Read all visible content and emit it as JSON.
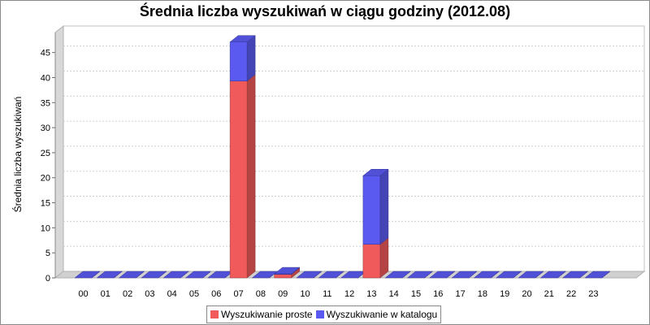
{
  "chart_data": {
    "type": "bar",
    "stacked": true,
    "style": "3d",
    "title": "Średnia liczba wyszukiwań w ciągu godziny (2012.08)",
    "xlabel": "",
    "ylabel": "Średnia liczba wyszukiwań",
    "ylim": [
      0,
      49
    ],
    "yticks": [
      0,
      5,
      10,
      15,
      20,
      25,
      30,
      35,
      40,
      45
    ],
    "grid": true,
    "legend_position": "bottom",
    "categories": [
      "00",
      "01",
      "02",
      "03",
      "04",
      "05",
      "06",
      "07",
      "08",
      "09",
      "10",
      "11",
      "12",
      "13",
      "14",
      "15",
      "16",
      "17",
      "18",
      "19",
      "20",
      "21",
      "22",
      "23"
    ],
    "series": [
      {
        "name": "Wyszukiwanie proste",
        "color": "#f05a5a",
        "values": [
          0,
          0,
          0,
          0,
          0,
          0,
          0,
          39.3,
          0,
          0.7,
          0,
          0,
          0,
          6.7,
          0,
          0,
          0,
          0,
          0,
          0,
          0,
          0,
          0,
          0
        ]
      },
      {
        "name": "Wyszukiwanie w katalogu",
        "color": "#5a5af0",
        "values": [
          0,
          0,
          0,
          0,
          0,
          0,
          0,
          7.8,
          0,
          0.1,
          0,
          0,
          0,
          13.7,
          0,
          0,
          0,
          0,
          0,
          0,
          0,
          0,
          0,
          0
        ]
      }
    ]
  }
}
